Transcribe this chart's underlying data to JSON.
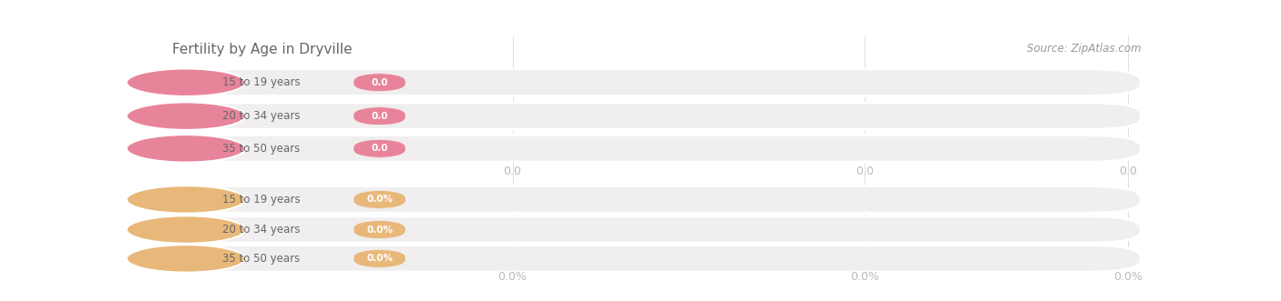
{
  "title": "Fertility by Age in Dryville",
  "source": "Source: ZipAtlas.com",
  "categories": [
    "15 to 19 years",
    "20 to 34 years",
    "35 to 50 years"
  ],
  "top_values_str": [
    "0.0",
    "0.0",
    "0.0"
  ],
  "bottom_values_str": [
    "0.0%",
    "0.0%",
    "0.0%"
  ],
  "top_axis_ticks": [
    "0.0",
    "0.0",
    "0.0"
  ],
  "bottom_axis_ticks": [
    "0.0%",
    "0.0%",
    "0.0%"
  ],
  "top_circle_color": "#e8849a",
  "top_badge_color": "#e8849a",
  "top_bar_bg": "#f0eeee",
  "bottom_circle_color": "#e8b87a",
  "bottom_badge_color": "#e8b87a",
  "bottom_bar_bg": "#f0eeee",
  "bg_color": "#ffffff",
  "title_color": "#666666",
  "source_color": "#999999",
  "tick_color": "#bbbbbb",
  "grid_color": "#dddddd",
  "label_text_color": "#666666",
  "figsize": [
    14.06,
    3.31
  ],
  "dpi": 100
}
